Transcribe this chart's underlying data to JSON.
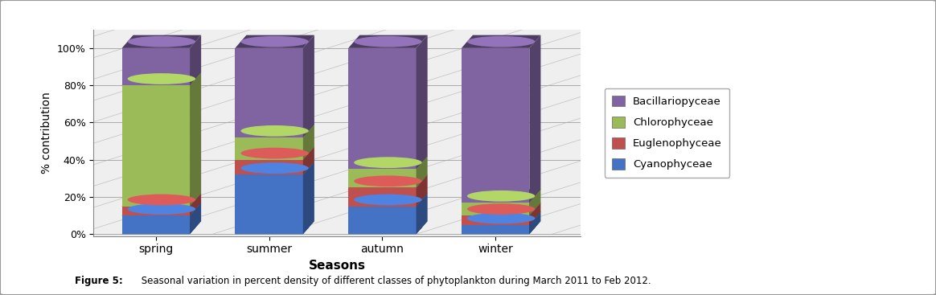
{
  "seasons": [
    "spring",
    "summer",
    "autumn",
    "winter"
  ],
  "categories": [
    "Cyanophyceae",
    "Euglenophyceae",
    "Chlorophyceae",
    "Bacillariopyceae"
  ],
  "colors": [
    "#4472C4",
    "#C0504D",
    "#9BBB59",
    "#8064A2"
  ],
  "values": {
    "spring": [
      10,
      5,
      65,
      20
    ],
    "summer": [
      32,
      8,
      12,
      48
    ],
    "autumn": [
      15,
      10,
      10,
      65
    ],
    "winter": [
      5,
      5,
      7,
      83
    ]
  },
  "ylabel": "% contribution",
  "xlabel": "Seasons",
  "caption_bold": "Figure 5:",
  "caption_rest": " Seasonal variation in percent density of different classes of phytoplankton during March 2011 to Feb 2012.",
  "background_color": "#FFFFFF",
  "ylim": [
    0,
    100
  ]
}
